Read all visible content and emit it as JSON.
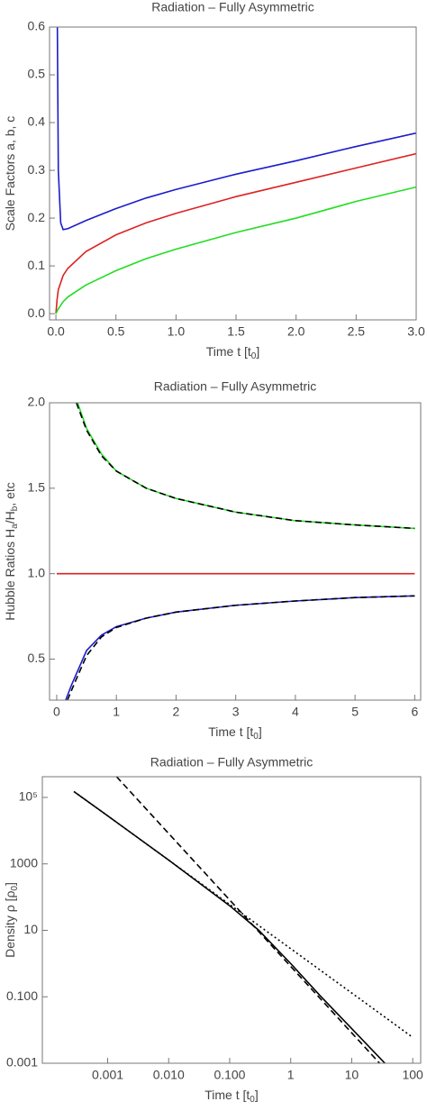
{
  "chart_data": [
    {
      "type": "line",
      "title": "Radiation  – Fully Asymmetric",
      "xlabel": [
        "Time  t [t",
        "0",
        "]"
      ],
      "ylabel": [
        "Scale Factors  a, b, c"
      ],
      "xlim": [
        -0.053,
        3.0
      ],
      "ylim": [
        -0.013,
        0.6
      ],
      "xticks": [
        {
          "value": 0,
          "label": "0.0"
        },
        0.5,
        {
          "value": 1,
          "label": "1.0"
        },
        1.5,
        {
          "value": 2,
          "label": "2.0"
        },
        2.5,
        {
          "value": 3,
          "label": "3.0"
        }
      ],
      "yticks": [
        {
          "value": 0,
          "label": "0.0"
        },
        0.1,
        0.2,
        0.3,
        0.4,
        0.5,
        0.6
      ],
      "series": [
        {
          "color": "#1c1ccc",
          "x": [
            0.012,
            0.02,
            0.04,
            0.06,
            0.1,
            0.25,
            0.5,
            0.75,
            1,
            1.5,
            2,
            2.5,
            3
          ],
          "values": [
            0.6,
            0.3,
            0.19,
            0.176,
            0.178,
            0.195,
            0.22,
            0.242,
            0.26,
            0.292,
            0.32,
            0.35,
            0.378
          ]
        },
        {
          "color": "#dd2222",
          "x": [
            0,
            0.01,
            0.02,
            0.06,
            0.1,
            0.25,
            0.5,
            0.75,
            1,
            1.5,
            2,
            2.5,
            3
          ],
          "values": [
            0,
            0.03,
            0.05,
            0.08,
            0.095,
            0.13,
            0.165,
            0.19,
            0.21,
            0.245,
            0.275,
            0.305,
            0.335
          ]
        },
        {
          "color": "#22dd22",
          "x": [
            0,
            0.02,
            0.06,
            0.1,
            0.25,
            0.5,
            0.75,
            1,
            1.5,
            2,
            2.5,
            3
          ],
          "values": [
            0,
            0.01,
            0.025,
            0.035,
            0.06,
            0.09,
            0.115,
            0.135,
            0.17,
            0.2,
            0.235,
            0.265
          ]
        }
      ]
    },
    {
      "type": "line",
      "title": "Radiation  – Fully Asymmetric",
      "xlabel": [
        "Time  t [t",
        "0",
        "]"
      ],
      "ylabel": [
        "Hubble Ratios  H",
        "a",
        "/H",
        "b",
        ", etc"
      ],
      "xlim": [
        -0.12,
        6.1
      ],
      "ylim": [
        0.26,
        2.0
      ],
      "xticks": [
        0,
        1,
        2,
        3,
        4,
        5,
        6
      ],
      "yticks": [
        0.5,
        {
          "value": 1,
          "label": "1.0"
        },
        1.5,
        {
          "value": 2,
          "label": "2.0"
        }
      ],
      "series": [
        {
          "color": "#22dd22",
          "x": [
            0.35,
            0.5,
            0.75,
            1,
            1.5,
            2,
            3,
            4,
            5,
            6
          ],
          "values": [
            2.0,
            1.85,
            1.7,
            1.6,
            1.5,
            1.44,
            1.36,
            1.31,
            1.285,
            1.265
          ]
        },
        {
          "color": "#000000",
          "dash": "dashed",
          "x": [
            0.33,
            0.5,
            0.75,
            1,
            1.5,
            2,
            3,
            4,
            5,
            6
          ],
          "values": [
            2.0,
            1.84,
            1.69,
            1.6,
            1.5,
            1.44,
            1.36,
            1.31,
            1.285,
            1.265
          ]
        },
        {
          "color": "#dd2222",
          "x": [
            0,
            6
          ],
          "values": [
            1,
            1
          ]
        },
        {
          "color": "#1c1ccc",
          "x": [
            0.15,
            0.25,
            0.5,
            0.75,
            1,
            1.5,
            2,
            3,
            4,
            5,
            6
          ],
          "values": [
            0.26,
            0.35,
            0.55,
            0.64,
            0.69,
            0.74,
            0.775,
            0.815,
            0.84,
            0.86,
            0.87
          ]
        },
        {
          "color": "#000000",
          "dash": "dashed",
          "x": [
            0.18,
            0.3,
            0.5,
            0.75,
            1,
            1.5,
            2,
            3,
            4,
            5,
            6
          ],
          "values": [
            0.26,
            0.36,
            0.52,
            0.63,
            0.685,
            0.74,
            0.775,
            0.815,
            0.84,
            0.86,
            0.87
          ]
        }
      ]
    },
    {
      "type": "line",
      "title": "Radiation  – Fully Asymmetric",
      "xlabel": [
        "Time  t [t",
        "0",
        "]"
      ],
      "ylabel": [
        "Density  ρ [ρ",
        "0",
        "]"
      ],
      "logx": true,
      "logy": true,
      "xlim": [
        8.5e-05,
        135
      ],
      "ylim": [
        0.001,
        420000
      ],
      "xticks": [
        0.001,
        {
          "value": 0.01,
          "label": "0.010"
        },
        {
          "value": 0.1,
          "label": "0.100"
        },
        1,
        10,
        100
      ],
      "yticks": [
        {
          "value": 100000,
          "label": "10⁵"
        },
        1000,
        10,
        {
          "value": 0.1,
          "label": "0.100"
        },
        0.001
      ],
      "series": [
        {
          "color": "#000000",
          "x": [
            0.00028,
            0.001,
            0.01,
            0.1,
            0.3,
            1,
            3,
            10,
            35
          ],
          "values": [
            150000,
            28000,
            1300,
            55,
            10,
            1.0,
            0.11,
            0.011,
            0.001
          ]
        },
        {
          "color": "#000000",
          "dash": "dashed",
          "x": [
            0.0014,
            0.01,
            0.1,
            1,
            10,
            35
          ],
          "values": [
            420000,
            8200,
            82,
            0.82,
            0.0082,
            0.00067
          ]
        },
        {
          "color": "#000000",
          "dash": "dotted",
          "x": [
            0.00028,
            0.001,
            0.01,
            0.1,
            1,
            10,
            100
          ],
          "values": [
            150000,
            28000,
            1300,
            60,
            2.8,
            0.13,
            0.006
          ]
        }
      ]
    }
  ]
}
